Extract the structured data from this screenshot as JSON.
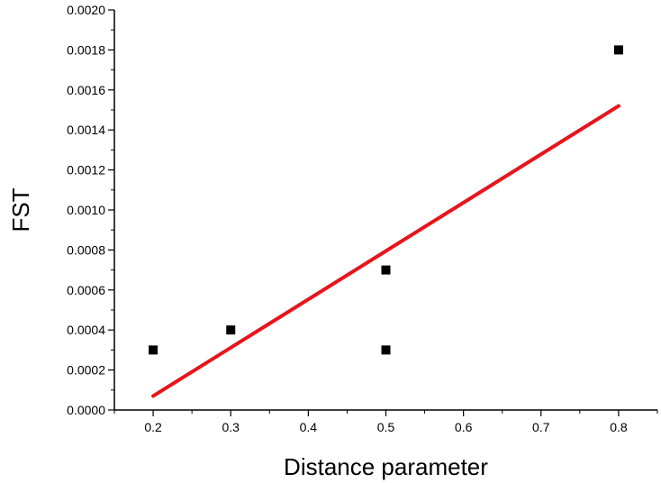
{
  "chart_data": {
    "type": "scatter",
    "title": "",
    "xlabel": "Distance parameter",
    "ylabel": "FST",
    "xlim": [
      0.15,
      0.85
    ],
    "ylim": [
      0.0,
      0.002
    ],
    "x_ticks": [
      "0.2",
      "0.3",
      "0.4",
      "0.5",
      "0.6",
      "0.7",
      "0.8"
    ],
    "y_ticks": [
      "0.0000",
      "0.0002",
      "0.0004",
      "0.0006",
      "0.0008",
      "0.0010",
      "0.0012",
      "0.0014",
      "0.0016",
      "0.0018",
      "0.0020"
    ],
    "grid": false,
    "legend": "none",
    "series": [
      {
        "type": "scatter",
        "marker": "square",
        "color": "#000000",
        "points": [
          {
            "x": 0.2,
            "y": 0.0003
          },
          {
            "x": 0.3,
            "y": 0.0004
          },
          {
            "x": 0.5,
            "y": 0.0007
          },
          {
            "x": 0.5,
            "y": 0.0003
          },
          {
            "x": 0.8,
            "y": 0.0018
          }
        ]
      },
      {
        "type": "line",
        "role": "linear-fit",
        "color": "#e8141a",
        "points": [
          {
            "x": 0.2,
            "y": 7e-05
          },
          {
            "x": 0.8,
            "y": 0.00152
          }
        ]
      }
    ]
  }
}
